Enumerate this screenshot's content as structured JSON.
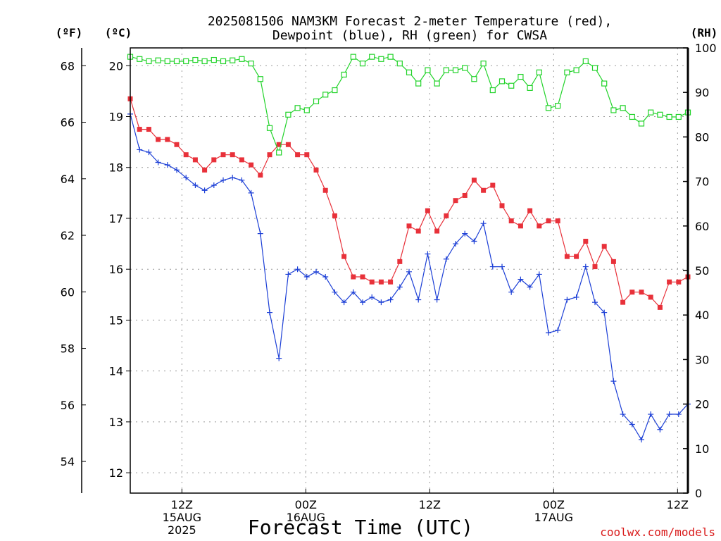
{
  "chart_data": {
    "type": "line",
    "title_lines": [
      "2025081506 NAM3KM Forecast 2-meter Temperature (red),",
      "Dewpoint (blue), RH (green) for CWSA"
    ],
    "xlabel": "Forecast Time (UTC)",
    "credit": "coolwx.com/models",
    "unit_labels": {
      "fahrenheit": "(ºF)",
      "celsius": "(ºC)",
      "rh": "(RH)"
    },
    "x_start_hour": 7,
    "x_end_hour": 61,
    "xticks": [
      {
        "hour": 12,
        "lines": [
          "12Z",
          "15AUG",
          "2025"
        ]
      },
      {
        "hour": 24,
        "lines": [
          "00Z",
          "16AUG"
        ]
      },
      {
        "hour": 36,
        "lines": [
          "12Z"
        ]
      },
      {
        "hour": 48,
        "lines": [
          "00Z",
          "17AUG"
        ]
      },
      {
        "hour": 60,
        "lines": [
          "12Z"
        ]
      }
    ],
    "y_celsius": {
      "range": [
        11.6,
        20.35
      ],
      "ticks": [
        12,
        13,
        14,
        15,
        16,
        17,
        18,
        19,
        20
      ]
    },
    "y_fahrenheit": {
      "ticks": [
        54,
        56,
        58,
        60,
        62,
        64,
        66,
        68
      ]
    },
    "y_rh": {
      "range": [
        0,
        100
      ],
      "ticks": [
        0,
        10,
        20,
        30,
        40,
        50,
        60,
        70,
        80,
        90,
        100
      ]
    },
    "grid": true,
    "series": [
      {
        "name": "Temperature",
        "axis": "celsius",
        "color": "#e8313a",
        "marker": "filled-square",
        "values": [
          19.35,
          18.75,
          18.75,
          18.55,
          18.55,
          18.45,
          18.25,
          18.15,
          17.95,
          18.15,
          18.25,
          18.25,
          18.15,
          18.05,
          17.85,
          18.25,
          18.45,
          18.45,
          18.25,
          18.25,
          17.95,
          17.55,
          17.05,
          16.25,
          15.85,
          15.85,
          15.75,
          15.75,
          15.75,
          16.15,
          16.85,
          16.75,
          17.15,
          16.75,
          17.05,
          17.35,
          17.45,
          17.75,
          17.55,
          17.65,
          17.25,
          16.95,
          16.85,
          17.15,
          16.85,
          16.95,
          16.95,
          16.25,
          16.25,
          16.55,
          16.05,
          16.45,
          16.15,
          15.35,
          15.55,
          15.55,
          15.45,
          15.25,
          15.75,
          15.75,
          15.85
        ]
      },
      {
        "name": "Dewpoint",
        "axis": "celsius",
        "color": "#1c3fd6",
        "marker": "plus",
        "values": [
          19.05,
          18.35,
          18.3,
          18.1,
          18.05,
          17.95,
          17.8,
          17.65,
          17.55,
          17.65,
          17.75,
          17.8,
          17.75,
          17.5,
          16.7,
          15.15,
          14.25,
          15.9,
          16.0,
          15.85,
          15.95,
          15.85,
          15.55,
          15.35,
          15.55,
          15.35,
          15.45,
          15.35,
          15.4,
          15.65,
          15.95,
          15.4,
          16.3,
          15.4,
          16.2,
          16.5,
          16.7,
          16.55,
          16.9,
          16.05,
          16.05,
          15.55,
          15.8,
          15.65,
          15.9,
          14.75,
          14.8,
          15.4,
          15.45,
          16.05,
          15.35,
          15.15,
          13.8,
          13.15,
          12.95,
          12.65,
          13.15,
          12.85,
          13.15,
          13.15,
          13.35
        ]
      },
      {
        "name": "RH",
        "axis": "rh",
        "color": "#22d32a",
        "marker": "open-square",
        "values": [
          98,
          97.5,
          97,
          97.2,
          97,
          97,
          97,
          97.3,
          97,
          97.3,
          97,
          97.2,
          97.5,
          96.5,
          93,
          82,
          76.5,
          85,
          86.5,
          86,
          88,
          89.5,
          90.5,
          94,
          98,
          96.5,
          98,
          97.5,
          98,
          96.5,
          94.5,
          92,
          95,
          92,
          95,
          95,
          95.5,
          93,
          96.5,
          90.5,
          92.5,
          91.5,
          93.5,
          91,
          94.5,
          86.5,
          87,
          94.5,
          95,
          97,
          95.5,
          92,
          86,
          86.5,
          84.5,
          83,
          85.5,
          85,
          84.5,
          84.5,
          85.5
        ]
      }
    ]
  }
}
